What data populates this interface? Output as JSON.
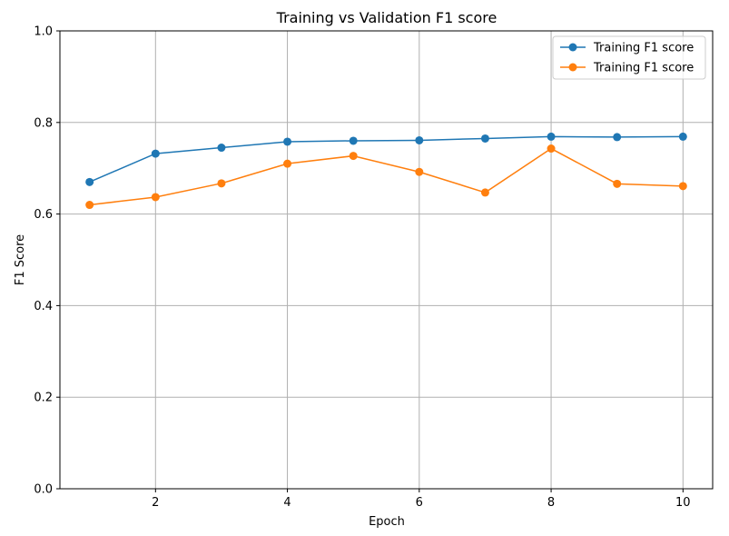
{
  "chart_data": {
    "type": "line",
    "title": "Training vs Validation F1 score",
    "xlabel": "Epoch",
    "ylabel": "F1 Score",
    "xlim": [
      0.55,
      10.45
    ],
    "ylim": [
      0.0,
      1.0
    ],
    "xticks": [
      2,
      4,
      6,
      8,
      10
    ],
    "yticks": [
      0.0,
      0.2,
      0.4,
      0.6,
      0.8,
      1.0
    ],
    "grid": true,
    "legend_position": "top-right",
    "x": [
      1,
      2,
      3,
      4,
      5,
      6,
      7,
      8,
      9,
      10
    ],
    "series": [
      {
        "name": "Training F1 score",
        "color": "#1f77b4",
        "marker": "circle",
        "values": [
          0.67,
          0.732,
          0.745,
          0.758,
          0.76,
          0.761,
          0.765,
          0.769,
          0.768,
          0.769
        ]
      },
      {
        "name": "Training F1 score",
        "color": "#ff7f0e",
        "marker": "circle",
        "values": [
          0.62,
          0.637,
          0.667,
          0.71,
          0.727,
          0.692,
          0.647,
          0.743,
          0.666,
          0.661
        ]
      }
    ]
  }
}
